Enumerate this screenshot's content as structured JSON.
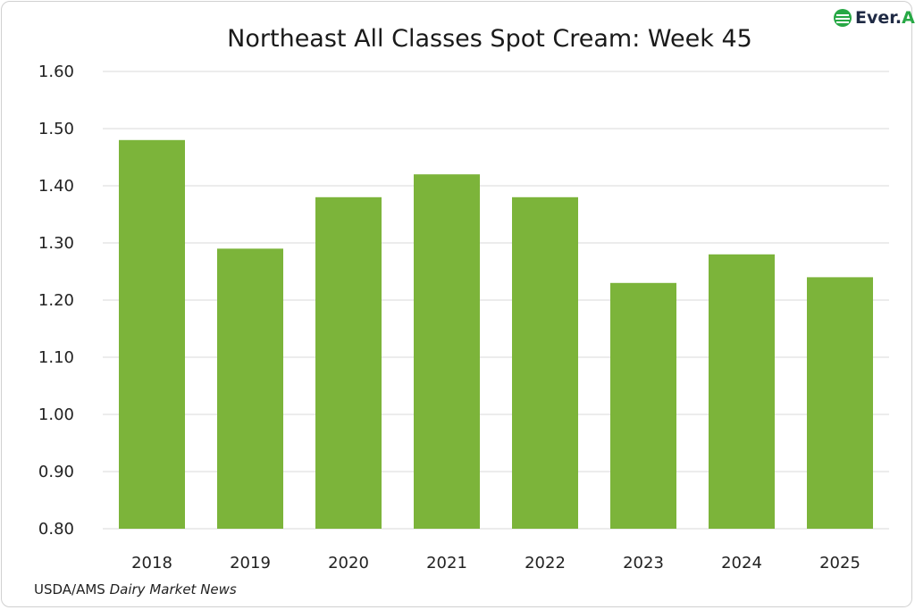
{
  "chart_data": {
    "type": "bar",
    "title": "Northeast All Classes Spot Cream: Week 45",
    "categories": [
      "2018",
      "2019",
      "2020",
      "2021",
      "2022",
      "2023",
      "2024",
      "2025"
    ],
    "values": [
      1.48,
      1.29,
      1.38,
      1.42,
      1.38,
      1.23,
      1.28,
      1.24
    ],
    "ylim": [
      0.8,
      1.6
    ],
    "yticks": [
      "0.80",
      "0.90",
      "1.00",
      "1.10",
      "1.20",
      "1.30",
      "1.40",
      "1.50",
      "1.60"
    ],
    "xlabel": "",
    "ylabel": "",
    "grid": true,
    "bar_color": "#7cb43a",
    "grid_color": "#d9d9d9"
  },
  "source": {
    "prefix": "USDA/AMS ",
    "italic": "Dairy Market News"
  },
  "logo": {
    "text_a": "Ever.",
    "text_b": "Ag",
    "icon": "ever-ag-logo-icon"
  }
}
